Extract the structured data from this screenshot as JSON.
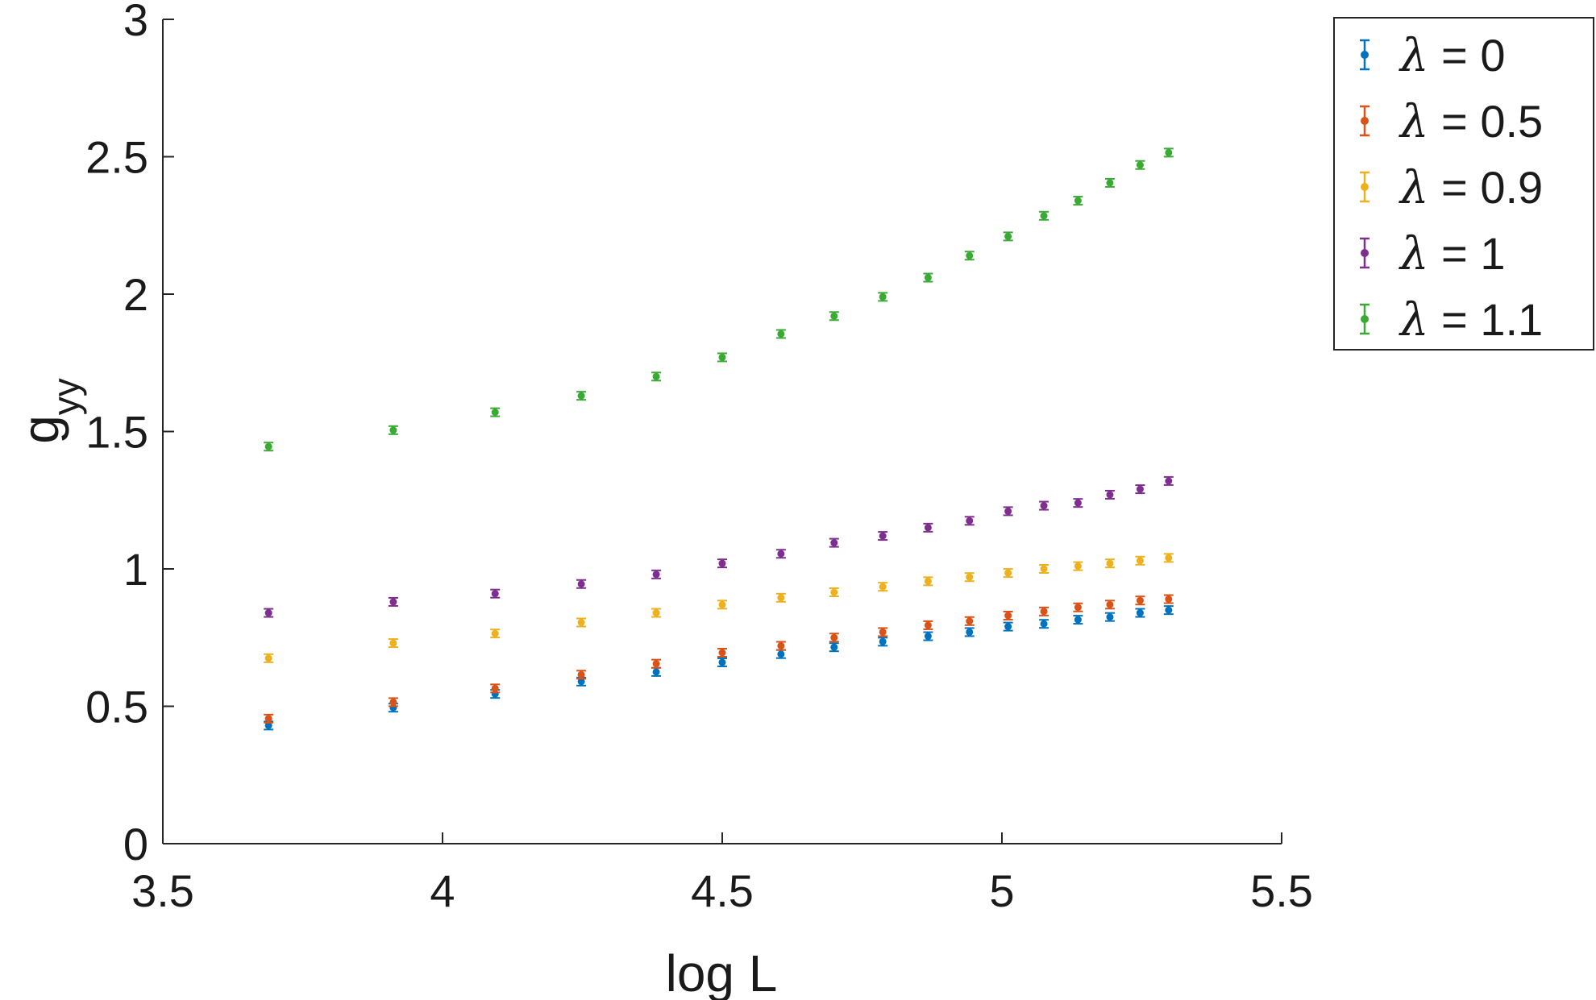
{
  "chart_data": {
    "type": "scatter",
    "title": "",
    "xlabel": "log L",
    "ylabel_main": "g",
    "ylabel_sub": "yy",
    "xlim": [
      3.5,
      5.5
    ],
    "ylim": [
      0,
      3
    ],
    "xticks": [
      3.5,
      4,
      4.5,
      5,
      5.5
    ],
    "xtick_labels": [
      "3.5",
      "4",
      "4.5",
      "5",
      "5.5"
    ],
    "yticks": [
      0,
      0.5,
      1,
      1.5,
      2,
      2.5,
      3
    ],
    "ytick_labels": [
      "0",
      "0.5",
      "1",
      "1.5",
      "2",
      "2.5",
      "3"
    ],
    "grid": false,
    "legend_position": "top-right outside",
    "legend_symbol": "λ",
    "legend_eq": "=",
    "x": [
      3.689,
      3.912,
      4.094,
      4.248,
      4.382,
      4.5,
      4.605,
      4.7,
      4.787,
      4.868,
      4.942,
      5.011,
      5.075,
      5.136,
      5.193,
      5.247,
      5.298
    ],
    "series": [
      {
        "label_value": "0",
        "color": "#0072BD",
        "values": [
          0.43,
          0.495,
          0.545,
          0.59,
          0.625,
          0.66,
          0.69,
          0.715,
          0.735,
          0.755,
          0.77,
          0.79,
          0.8,
          0.815,
          0.825,
          0.84,
          0.85
        ]
      },
      {
        "label_value": "0.5",
        "color": "#D95319",
        "values": [
          0.455,
          0.515,
          0.565,
          0.615,
          0.655,
          0.695,
          0.72,
          0.75,
          0.77,
          0.795,
          0.81,
          0.83,
          0.845,
          0.86,
          0.87,
          0.885,
          0.89
        ]
      },
      {
        "label_value": "0.9",
        "color": "#EDB120",
        "values": [
          0.675,
          0.73,
          0.765,
          0.805,
          0.84,
          0.87,
          0.895,
          0.915,
          0.935,
          0.955,
          0.97,
          0.985,
          1.0,
          1.01,
          1.02,
          1.03,
          1.04
        ]
      },
      {
        "label_value": "1",
        "color": "#7E2F8E",
        "values": [
          0.84,
          0.88,
          0.91,
          0.945,
          0.98,
          1.02,
          1.055,
          1.095,
          1.12,
          1.15,
          1.175,
          1.21,
          1.23,
          1.24,
          1.27,
          1.29,
          1.32
        ]
      },
      {
        "label_value": "1.1",
        "color": "#3AAA35",
        "values": [
          1.445,
          1.505,
          1.57,
          1.63,
          1.7,
          1.77,
          1.855,
          1.92,
          1.99,
          2.06,
          2.14,
          2.21,
          2.285,
          2.34,
          2.405,
          2.47,
          2.515
        ]
      }
    ]
  }
}
